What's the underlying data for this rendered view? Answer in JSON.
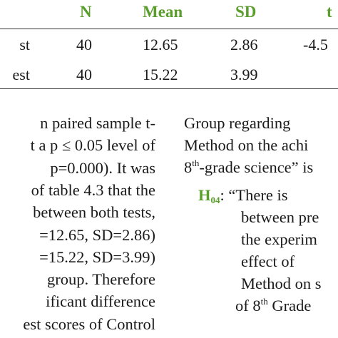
{
  "table": {
    "header": [
      "N",
      "Mean",
      "SD",
      "t"
    ],
    "rows": [
      [
        "st",
        "40",
        "12.65",
        "2.86",
        "-4.5"
      ],
      [
        "est",
        "40",
        "15.22",
        "3.99"
      ]
    ]
  },
  "left_column": [
    "n paired sample t-",
    "t a p ≤ 0.05 level of",
    "p=0.000). It was",
    "of table 4.3 that the",
    "between both tests,",
    "=12.65, SD=2.86)",
    "=15.22, SD=3.99)",
    "group. Therefore",
    "ificant difference",
    "est scores of Control"
  ],
  "right_column": {
    "lines": [
      "Group regarding",
      "Method on the achi"
    ],
    "grade_line": {
      "number": "8",
      "suffix": "th",
      "text": "-grade science” is"
    },
    "hypothesis": {
      "label": "H",
      "label_sub": "04",
      "text": ":  “There is"
    },
    "hypothesis_lines": [
      "between pre",
      "the experim",
      "effect of",
      "Method on s"
    ],
    "last_line": {
      "prefix": "of 8",
      "suffix": "th",
      "text": " Grade"
    }
  }
}
